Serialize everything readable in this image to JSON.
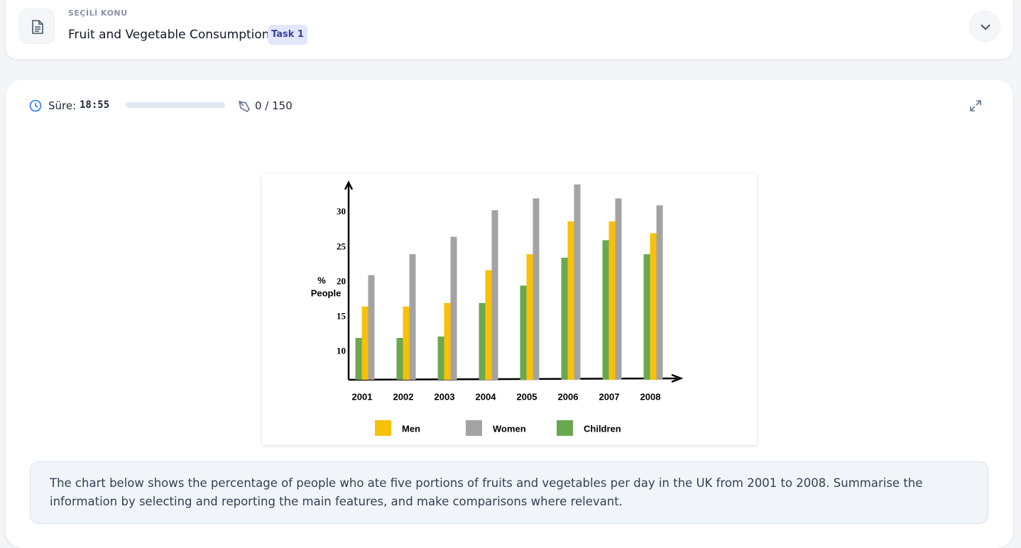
{
  "header": {
    "eyebrow": "SEÇİLİ KONU",
    "title": "Fruit and Vegetable Consumption",
    "badge": "Task 1"
  },
  "toolbar": {
    "timer_label": "Süre:",
    "timer": "18:55",
    "word_count": "0 / 150"
  },
  "chart_data": {
    "type": "bar",
    "ylabel": [
      "%",
      "People"
    ],
    "categories": [
      "2001",
      "2002",
      "2003",
      "2004",
      "2005",
      "2006",
      "2007",
      "2008"
    ],
    "series": [
      {
        "name": "Children",
        "color": "#6aa84f",
        "values": [
          12,
          12,
          12.2,
          17,
          19.5,
          23.5,
          26,
          24
        ]
      },
      {
        "name": "Men",
        "color": "#f7c10a",
        "values": [
          16.5,
          16.5,
          17,
          21.7,
          24,
          28.7,
          28.7,
          27
        ]
      },
      {
        "name": "Women",
        "color": "#a3a3a3",
        "values": [
          21,
          24,
          26.5,
          30.3,
          32,
          34,
          32,
          31
        ]
      }
    ],
    "legend_order": [
      "Men",
      "Women",
      "Children"
    ],
    "ylim": [
      6,
      35
    ],
    "yticks": [
      10,
      15,
      20,
      25,
      30
    ]
  },
  "prompt": [
    "The chart below shows the percentage of people who ate five portions of fruits and vegetables per day in the UK from 2001 to 2008. Summarise the",
    "information by selecting and reporting the main features, and make comparisons where relevant."
  ]
}
